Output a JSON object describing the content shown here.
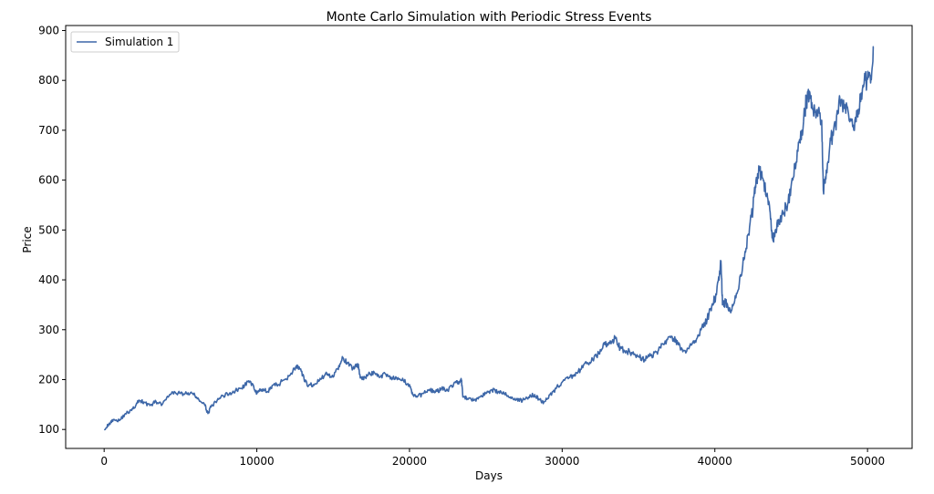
{
  "chart_data": {
    "type": "line",
    "title": "Monte Carlo Simulation with Periodic Stress Events",
    "xlabel": "Days",
    "ylabel": "Price",
    "xlim": [
      -2520,
      52920
    ],
    "ylim": [
      62,
      910
    ],
    "xticks": [
      0,
      10000,
      20000,
      30000,
      40000,
      50000
    ],
    "yticks": [
      100,
      200,
      300,
      400,
      500,
      600,
      700,
      800,
      900
    ],
    "grid": false,
    "legend_position": "top-left",
    "series": [
      {
        "name": "Simulation 1",
        "color": "#3d67a8",
        "points": [
          [
            0,
            100
          ],
          [
            300,
            110
          ],
          [
            600,
            120
          ],
          [
            1000,
            118
          ],
          [
            1400,
            132
          ],
          [
            1800,
            138
          ],
          [
            2100,
            150
          ],
          [
            2300,
            158
          ],
          [
            2600,
            155
          ],
          [
            3000,
            148
          ],
          [
            3400,
            156
          ],
          [
            3800,
            150
          ],
          [
            4200,
            165
          ],
          [
            4600,
            176
          ],
          [
            5000,
            172
          ],
          [
            5400,
            172
          ],
          [
            5800,
            172
          ],
          [
            6200,
            160
          ],
          [
            6600,
            148
          ],
          [
            6800,
            132
          ],
          [
            7000,
            145
          ],
          [
            7400,
            158
          ],
          [
            7800,
            168
          ],
          [
            8200,
            172
          ],
          [
            8600,
            178
          ],
          [
            9000,
            182
          ],
          [
            9400,
            196
          ],
          [
            9800,
            186
          ],
          [
            10000,
            172
          ],
          [
            10300,
            180
          ],
          [
            10700,
            176
          ],
          [
            11000,
            188
          ],
          [
            11400,
            190
          ],
          [
            11800,
            200
          ],
          [
            12200,
            210
          ],
          [
            12600,
            228
          ],
          [
            12800,
            222
          ],
          [
            13000,
            208
          ],
          [
            13300,
            188
          ],
          [
            13700,
            190
          ],
          [
            14100,
            198
          ],
          [
            14500,
            212
          ],
          [
            14900,
            205
          ],
          [
            15300,
            222
          ],
          [
            15600,
            246
          ],
          [
            15900,
            232
          ],
          [
            16300,
            222
          ],
          [
            16600,
            232
          ],
          [
            16800,
            205
          ],
          [
            17000,
            200
          ],
          [
            17300,
            210
          ],
          [
            17700,
            214
          ],
          [
            18000,
            205
          ],
          [
            18400,
            212
          ],
          [
            18800,
            205
          ],
          [
            19200,
            200
          ],
          [
            19600,
            198
          ],
          [
            20000,
            190
          ],
          [
            20200,
            170
          ],
          [
            20500,
            165
          ],
          [
            20900,
            172
          ],
          [
            21300,
            180
          ],
          [
            21700,
            175
          ],
          [
            22100,
            182
          ],
          [
            22500,
            178
          ],
          [
            22900,
            192
          ],
          [
            23200,
            195
          ],
          [
            23400,
            198
          ],
          [
            23500,
            165
          ],
          [
            23800,
            162
          ],
          [
            24200,
            158
          ],
          [
            24600,
            165
          ],
          [
            25000,
            172
          ],
          [
            25400,
            180
          ],
          [
            25800,
            175
          ],
          [
            26200,
            172
          ],
          [
            26600,
            165
          ],
          [
            27000,
            160
          ],
          [
            27400,
            158
          ],
          [
            27800,
            165
          ],
          [
            28200,
            170
          ],
          [
            28500,
            160
          ],
          [
            28800,
            155
          ],
          [
            29200,
            170
          ],
          [
            29600,
            182
          ],
          [
            30000,
            195
          ],
          [
            30400,
            202
          ],
          [
            30800,
            210
          ],
          [
            31200,
            220
          ],
          [
            31600,
            232
          ],
          [
            32000,
            240
          ],
          [
            32400,
            252
          ],
          [
            32800,
            270
          ],
          [
            33200,
            272
          ],
          [
            33500,
            285
          ],
          [
            33800,
            262
          ],
          [
            34200,
            258
          ],
          [
            34600,
            252
          ],
          [
            35000,
            246
          ],
          [
            35400,
            240
          ],
          [
            35800,
            248
          ],
          [
            36200,
            255
          ],
          [
            36500,
            272
          ],
          [
            36900,
            280
          ],
          [
            37300,
            282
          ],
          [
            37600,
            270
          ],
          [
            37900,
            256
          ],
          [
            38300,
            262
          ],
          [
            38700,
            278
          ],
          [
            39100,
            300
          ],
          [
            39500,
            322
          ],
          [
            39800,
            348
          ],
          [
            40100,
            370
          ],
          [
            40300,
            412
          ],
          [
            40400,
            438
          ],
          [
            40500,
            350
          ],
          [
            40700,
            355
          ],
          [
            41000,
            340
          ],
          [
            41300,
            358
          ],
          [
            41600,
            392
          ],
          [
            41900,
            440
          ],
          [
            42200,
            492
          ],
          [
            42500,
            545
          ],
          [
            42700,
            600
          ],
          [
            42900,
            620
          ],
          [
            43100,
            605
          ],
          [
            43400,
            570
          ],
          [
            43600,
            540
          ],
          [
            43800,
            480
          ],
          [
            44000,
            500
          ],
          [
            44200,
            520
          ],
          [
            44500,
            535
          ],
          [
            44800,
            555
          ],
          [
            45100,
            600
          ],
          [
            45400,
            660
          ],
          [
            45700,
            700
          ],
          [
            46000,
            760
          ],
          [
            46200,
            778
          ],
          [
            46400,
            742
          ],
          [
            46700,
            735
          ],
          [
            47000,
            720
          ],
          [
            47100,
            580
          ],
          [
            47300,
            620
          ],
          [
            47600,
            680
          ],
          [
            47900,
            710
          ],
          [
            48200,
            760
          ],
          [
            48500,
            752
          ],
          [
            48800,
            720
          ],
          [
            49100,
            700
          ],
          [
            49400,
            742
          ],
          [
            49700,
            790
          ],
          [
            50000,
            802
          ],
          [
            50200,
            795
          ],
          [
            50400,
            868
          ]
        ]
      }
    ]
  }
}
